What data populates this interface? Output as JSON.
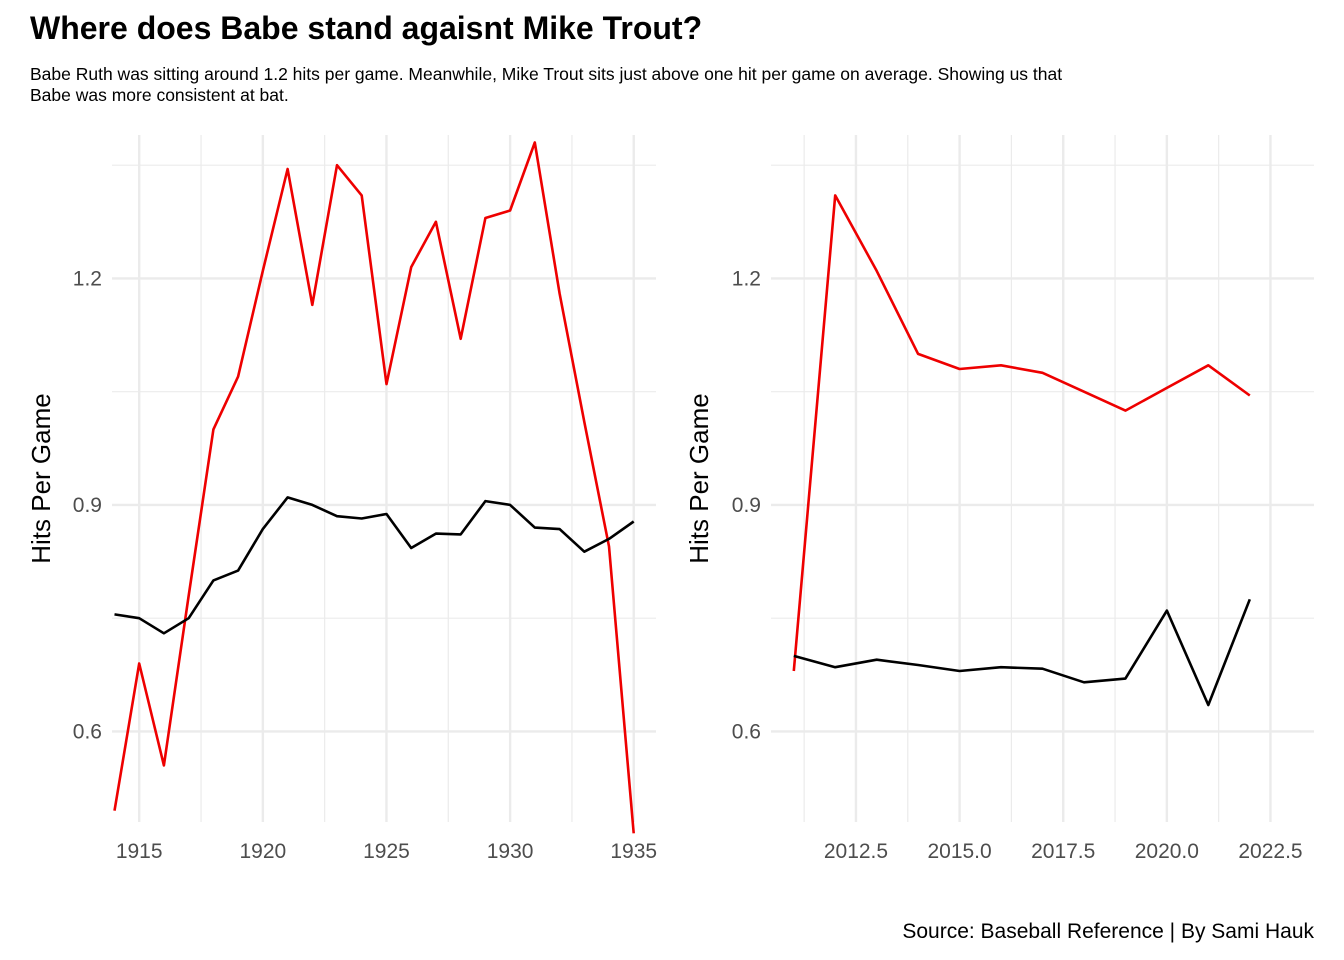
{
  "title": "Where does Babe stand agaisnt Mike Trout?",
  "subtitle": "Babe Ruth was sitting around 1.2 hits per game. Meanwhile, Mike Trout sits just above one hit per game on average. Showing us that\n Babe was more consistent at bat.",
  "caption": "Source: Baseball Reference | By Sami Hauk",
  "colors": {
    "red_series": "#ee0000",
    "black_series": "#000000",
    "grid": "#ebebeb"
  },
  "chart_data": [
    {
      "type": "line",
      "xlabel": "",
      "ylabel": "Hits Per Game",
      "xlim": [
        1913.9,
        1935.9
      ],
      "ylim": [
        0.48,
        1.39
      ],
      "x_ticks": [
        1915,
        1920,
        1925,
        1930,
        1935
      ],
      "x_tick_labels": [
        "1915",
        "1920",
        "1925",
        "1930",
        "1935"
      ],
      "y_ticks": [
        0.6,
        0.9,
        1.2
      ],
      "y_tick_labels": [
        "0.6",
        "0.9",
        "1.2"
      ],
      "grid": true,
      "series": [
        {
          "color": "#ee0000",
          "x": [
            1914,
            1915,
            1916,
            1917,
            1918,
            1919,
            1920,
            1921,
            1922,
            1923,
            1924,
            1925,
            1926,
            1927,
            1928,
            1929,
            1930,
            1931,
            1932,
            1933,
            1934,
            1935
          ],
          "y": [
            0.495,
            0.69,
            0.555,
            0.78,
            1.0,
            1.07,
            1.21,
            1.345,
            1.165,
            1.35,
            1.31,
            1.06,
            1.215,
            1.275,
            1.12,
            1.28,
            1.29,
            1.38,
            1.18,
            1.01,
            0.845,
            0.465
          ]
        },
        {
          "color": "#000000",
          "x": [
            1914,
            1915,
            1916,
            1917,
            1918,
            1919,
            1920,
            1921,
            1922,
            1923,
            1924,
            1925,
            1926,
            1927,
            1928,
            1929,
            1930,
            1931,
            1932,
            1933,
            1934,
            1935
          ],
          "y": [
            0.755,
            0.75,
            0.73,
            0.75,
            0.8,
            0.813,
            0.868,
            0.91,
            0.9,
            0.885,
            0.882,
            0.888,
            0.843,
            0.862,
            0.861,
            0.905,
            0.9,
            0.87,
            0.868,
            0.838,
            0.855,
            0.878
          ]
        }
      ]
    },
    {
      "type": "line",
      "xlabel": "",
      "ylabel": "Hits Per Game",
      "xlim": [
        2010.45,
        2023.55
      ],
      "ylim": [
        0.48,
        1.39
      ],
      "x_ticks": [
        2012.5,
        2015,
        2017.5,
        2020,
        2022.5
      ],
      "x_tick_labels": [
        "2012.5",
        "2015.0",
        "2017.5",
        "2020.0",
        "2022.5"
      ],
      "y_ticks": [
        0.6,
        0.9,
        1.2
      ],
      "y_tick_labels": [
        "0.6",
        "0.9",
        "1.2"
      ],
      "grid": true,
      "series": [
        {
          "color": "#ee0000",
          "x": [
            2011,
            2012,
            2013,
            2014,
            2015,
            2016,
            2017,
            2018,
            2019,
            2020,
            2021,
            2022
          ],
          "y": [
            0.68,
            1.31,
            1.21,
            1.1,
            1.08,
            1.085,
            1.075,
            1.05,
            1.025,
            1.055,
            1.085,
            1.045
          ]
        },
        {
          "color": "#000000",
          "x": [
            2011,
            2012,
            2013,
            2014,
            2015,
            2016,
            2017,
            2018,
            2019,
            2020,
            2021,
            2022
          ],
          "y": [
            0.7,
            0.685,
            0.695,
            0.688,
            0.68,
            0.685,
            0.683,
            0.665,
            0.67,
            0.76,
            0.635,
            0.775
          ]
        }
      ]
    }
  ]
}
